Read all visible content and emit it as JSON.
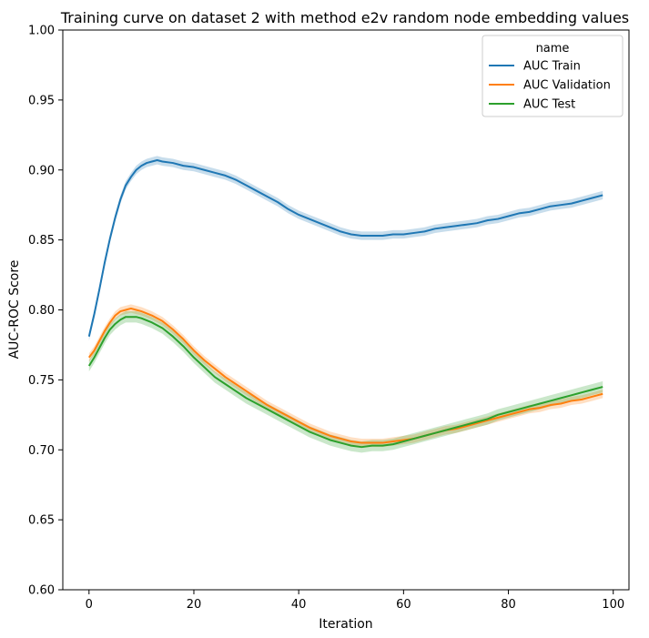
{
  "chart_data": {
    "type": "line",
    "title": "Training curve on dataset 2 with method e2v random node embedding values",
    "xlabel": "Iteration",
    "ylabel": "AUC-ROC Score",
    "xlim": [
      -5,
      103
    ],
    "ylim": [
      0.6,
      1.0
    ],
    "xticks": [
      0,
      20,
      40,
      60,
      80,
      100
    ],
    "yticks": [
      0.6,
      0.65,
      0.7,
      0.75,
      0.8,
      0.85,
      0.9,
      0.95,
      1.0
    ],
    "xtick_labels": [
      "0",
      "20",
      "40",
      "60",
      "80",
      "100"
    ],
    "ytick_labels": [
      "0.60",
      "0.65",
      "0.70",
      "0.75",
      "0.80",
      "0.85",
      "0.90",
      "0.95",
      "1.00"
    ],
    "grid": false,
    "legend": {
      "title": "name",
      "position": "top-right"
    },
    "series": [
      {
        "name": "AUC Train",
        "color": "#1f77b4",
        "band": 0.003,
        "points": [
          [
            0,
            0.781
          ],
          [
            1,
            0.797
          ],
          [
            2,
            0.815
          ],
          [
            3,
            0.834
          ],
          [
            4,
            0.851
          ],
          [
            5,
            0.866
          ],
          [
            6,
            0.879
          ],
          [
            7,
            0.889
          ],
          [
            8,
            0.895
          ],
          [
            9,
            0.9
          ],
          [
            10,
            0.903
          ],
          [
            11,
            0.905
          ],
          [
            12,
            0.906
          ],
          [
            13,
            0.907
          ],
          [
            14,
            0.906
          ],
          [
            16,
            0.905
          ],
          [
            18,
            0.903
          ],
          [
            20,
            0.902
          ],
          [
            22,
            0.9
          ],
          [
            24,
            0.898
          ],
          [
            26,
            0.896
          ],
          [
            28,
            0.893
          ],
          [
            30,
            0.889
          ],
          [
            32,
            0.885
          ],
          [
            34,
            0.881
          ],
          [
            36,
            0.877
          ],
          [
            38,
            0.872
          ],
          [
            40,
            0.868
          ],
          [
            42,
            0.865
          ],
          [
            44,
            0.862
          ],
          [
            46,
            0.859
          ],
          [
            48,
            0.856
          ],
          [
            50,
            0.854
          ],
          [
            52,
            0.853
          ],
          [
            54,
            0.853
          ],
          [
            56,
            0.853
          ],
          [
            58,
            0.854
          ],
          [
            60,
            0.854
          ],
          [
            62,
            0.855
          ],
          [
            64,
            0.856
          ],
          [
            66,
            0.858
          ],
          [
            68,
            0.859
          ],
          [
            70,
            0.86
          ],
          [
            72,
            0.861
          ],
          [
            74,
            0.862
          ],
          [
            76,
            0.864
          ],
          [
            78,
            0.865
          ],
          [
            80,
            0.867
          ],
          [
            82,
            0.869
          ],
          [
            84,
            0.87
          ],
          [
            86,
            0.872
          ],
          [
            88,
            0.874
          ],
          [
            90,
            0.875
          ],
          [
            92,
            0.876
          ],
          [
            94,
            0.878
          ],
          [
            96,
            0.88
          ],
          [
            98,
            0.882
          ]
        ]
      },
      {
        "name": "AUC Validation",
        "color": "#ff7f0e",
        "band": 0.003,
        "points": [
          [
            0,
            0.766
          ],
          [
            1,
            0.771
          ],
          [
            2,
            0.778
          ],
          [
            3,
            0.785
          ],
          [
            4,
            0.791
          ],
          [
            5,
            0.796
          ],
          [
            6,
            0.799
          ],
          [
            7,
            0.8
          ],
          [
            8,
            0.801
          ],
          [
            9,
            0.8
          ],
          [
            10,
            0.799
          ],
          [
            12,
            0.796
          ],
          [
            14,
            0.792
          ],
          [
            16,
            0.786
          ],
          [
            18,
            0.779
          ],
          [
            20,
            0.771
          ],
          [
            22,
            0.764
          ],
          [
            24,
            0.758
          ],
          [
            26,
            0.752
          ],
          [
            28,
            0.747
          ],
          [
            30,
            0.742
          ],
          [
            32,
            0.737
          ],
          [
            34,
            0.732
          ],
          [
            36,
            0.728
          ],
          [
            38,
            0.724
          ],
          [
            40,
            0.72
          ],
          [
            42,
            0.716
          ],
          [
            44,
            0.713
          ],
          [
            46,
            0.71
          ],
          [
            48,
            0.708
          ],
          [
            50,
            0.706
          ],
          [
            52,
            0.705
          ],
          [
            54,
            0.705
          ],
          [
            56,
            0.705
          ],
          [
            58,
            0.706
          ],
          [
            60,
            0.707
          ],
          [
            62,
            0.708
          ],
          [
            64,
            0.71
          ],
          [
            66,
            0.712
          ],
          [
            68,
            0.714
          ],
          [
            70,
            0.715
          ],
          [
            72,
            0.717
          ],
          [
            74,
            0.719
          ],
          [
            76,
            0.721
          ],
          [
            78,
            0.723
          ],
          [
            80,
            0.725
          ],
          [
            82,
            0.727
          ],
          [
            84,
            0.729
          ],
          [
            86,
            0.73
          ],
          [
            88,
            0.732
          ],
          [
            90,
            0.733
          ],
          [
            92,
            0.735
          ],
          [
            94,
            0.736
          ],
          [
            96,
            0.738
          ],
          [
            98,
            0.74
          ]
        ]
      },
      {
        "name": "AUC Test",
        "color": "#2ca02c",
        "band": 0.004,
        "points": [
          [
            0,
            0.76
          ],
          [
            1,
            0.766
          ],
          [
            2,
            0.773
          ],
          [
            3,
            0.78
          ],
          [
            4,
            0.786
          ],
          [
            5,
            0.79
          ],
          [
            6,
            0.793
          ],
          [
            7,
            0.795
          ],
          [
            8,
            0.795
          ],
          [
            9,
            0.795
          ],
          [
            10,
            0.794
          ],
          [
            12,
            0.791
          ],
          [
            14,
            0.787
          ],
          [
            16,
            0.781
          ],
          [
            18,
            0.774
          ],
          [
            20,
            0.766
          ],
          [
            22,
            0.759
          ],
          [
            24,
            0.752
          ],
          [
            26,
            0.747
          ],
          [
            28,
            0.742
          ],
          [
            30,
            0.737
          ],
          [
            32,
            0.733
          ],
          [
            34,
            0.729
          ],
          [
            36,
            0.725
          ],
          [
            38,
            0.721
          ],
          [
            40,
            0.717
          ],
          [
            42,
            0.713
          ],
          [
            44,
            0.71
          ],
          [
            46,
            0.707
          ],
          [
            48,
            0.705
          ],
          [
            50,
            0.703
          ],
          [
            52,
            0.702
          ],
          [
            54,
            0.703
          ],
          [
            56,
            0.703
          ],
          [
            58,
            0.704
          ],
          [
            60,
            0.706
          ],
          [
            62,
            0.708
          ],
          [
            64,
            0.71
          ],
          [
            66,
            0.712
          ],
          [
            68,
            0.714
          ],
          [
            70,
            0.716
          ],
          [
            72,
            0.718
          ],
          [
            74,
            0.72
          ],
          [
            76,
            0.722
          ],
          [
            78,
            0.725
          ],
          [
            80,
            0.727
          ],
          [
            82,
            0.729
          ],
          [
            84,
            0.731
          ],
          [
            86,
            0.733
          ],
          [
            88,
            0.735
          ],
          [
            90,
            0.737
          ],
          [
            92,
            0.739
          ],
          [
            94,
            0.741
          ],
          [
            96,
            0.743
          ],
          [
            98,
            0.745
          ]
        ]
      }
    ]
  }
}
